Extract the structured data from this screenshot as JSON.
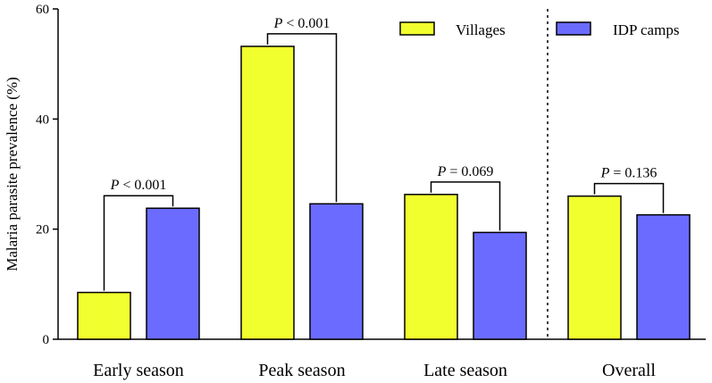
{
  "chart_data": {
    "type": "bar",
    "categories": [
      "Early season",
      "Peak season",
      "Late season",
      "Overall"
    ],
    "series": [
      {
        "name": "Villages",
        "color": "#f2ff2e",
        "values": [
          8.5,
          53.2,
          26.3,
          26.0
        ]
      },
      {
        "name": "IDP camps",
        "color": "#6b6bff",
        "values": [
          23.8,
          24.6,
          19.4,
          22.6
        ]
      }
    ],
    "ylabel": "Malaria parasite prevalence (%)",
    "ylim": [
      0,
      60
    ],
    "yticks": [
      "0",
      "20",
      "40",
      "60"
    ],
    "annotations": [
      {
        "category": "Early season",
        "p_symbol": "P",
        "p_value": "< 0.001"
      },
      {
        "category": "Peak season",
        "p_symbol": "P",
        "p_value": "< 0.001"
      },
      {
        "category": "Late season",
        "p_symbol": "P",
        "p_value": "= 0.069"
      },
      {
        "category": "Overall",
        "p_symbol": "P",
        "p_value": "= 0.136"
      }
    ],
    "separator_before": "Overall",
    "legend_position": "top-right",
    "grid": false
  }
}
